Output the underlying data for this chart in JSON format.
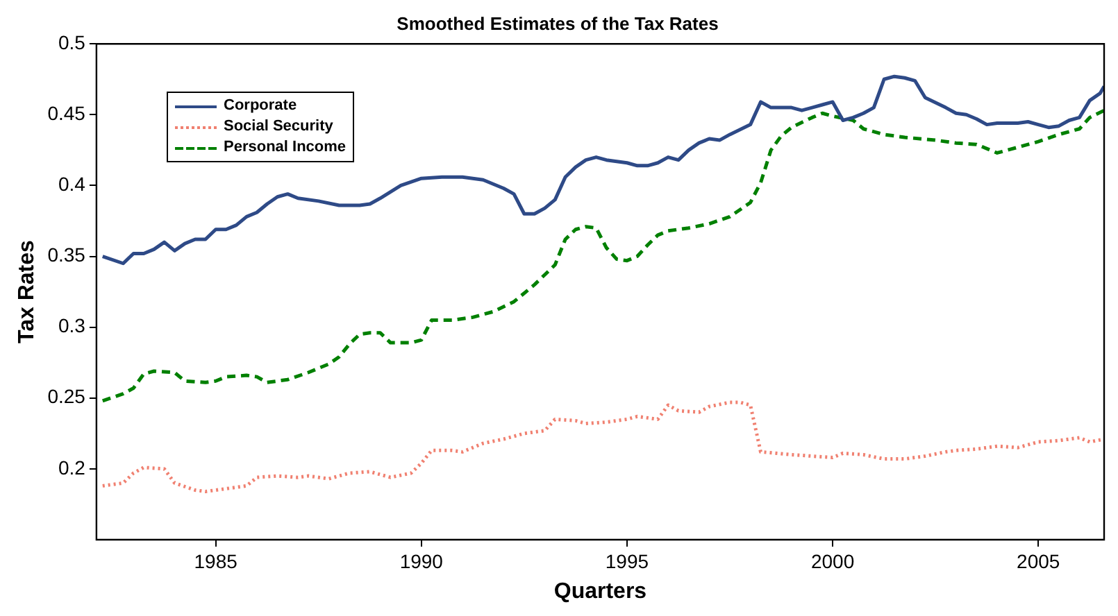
{
  "chart_data": {
    "type": "line",
    "title": "Smoothed Estimates of the Tax Rates",
    "xlabel": "Quarters",
    "ylabel": "Tax Rates",
    "xlim": [
      1982.1,
      2006.6
    ],
    "xticks": [
      1985,
      1990,
      1995,
      2000,
      2005
    ],
    "ylim": [
      0.15,
      0.5
    ],
    "yticks": [
      0.2,
      0.25,
      0.3,
      0.35,
      0.4,
      0.45,
      0.5
    ],
    "grid": false,
    "legend": "top left",
    "marker": "none",
    "series": [
      {
        "name": "Corporate",
        "color": "#2e4a87",
        "line_style": "solid",
        "x": [
          1982.25,
          1982.75,
          1983.0,
          1983.25,
          1983.5,
          1983.75,
          1984.0,
          1984.25,
          1984.5,
          1984.75,
          1985.0,
          1985.25,
          1985.5,
          1985.75,
          1986.0,
          1986.25,
          1986.5,
          1986.75,
          1987.0,
          1987.5,
          1988.0,
          1988.5,
          1988.75,
          1989.0,
          1989.5,
          1990.0,
          1990.5,
          1991.0,
          1991.5,
          1992.0,
          1992.25,
          1992.5,
          1992.75,
          1993.0,
          1993.25,
          1993.5,
          1993.75,
          1994.0,
          1994.25,
          1994.5,
          1995.0,
          1995.25,
          1995.5,
          1995.75,
          1996.0,
          1996.25,
          1996.5,
          1996.75,
          1997.0,
          1997.25,
          1997.5,
          1998.0,
          1998.25,
          1998.5,
          1999.0,
          1999.25,
          1999.5,
          1999.75,
          2000.0,
          2000.25,
          2000.5,
          2000.75,
          2001.0,
          2001.25,
          2001.5,
          2001.75,
          2002.0,
          2002.25,
          2002.75,
          2003.0,
          2003.25,
          2003.5,
          2003.75,
          2004.0,
          2004.5,
          2004.75,
          2005.0,
          2005.25,
          2005.5,
          2005.75,
          2006.0,
          2006.25,
          2006.5,
          2006.6
        ],
        "values": [
          0.35,
          0.345,
          0.352,
          0.352,
          0.355,
          0.36,
          0.354,
          0.359,
          0.362,
          0.362,
          0.369,
          0.369,
          0.372,
          0.378,
          0.381,
          0.387,
          0.392,
          0.394,
          0.391,
          0.389,
          0.386,
          0.386,
          0.387,
          0.391,
          0.4,
          0.405,
          0.406,
          0.406,
          0.404,
          0.398,
          0.394,
          0.38,
          0.38,
          0.384,
          0.39,
          0.406,
          0.413,
          0.418,
          0.42,
          0.418,
          0.416,
          0.414,
          0.414,
          0.416,
          0.42,
          0.418,
          0.425,
          0.43,
          0.433,
          0.432,
          0.436,
          0.443,
          0.459,
          0.455,
          0.455,
          0.453,
          0.455,
          0.457,
          0.459,
          0.446,
          0.448,
          0.451,
          0.455,
          0.475,
          0.477,
          0.476,
          0.474,
          0.462,
          0.455,
          0.451,
          0.45,
          0.447,
          0.443,
          0.444,
          0.444,
          0.445,
          0.443,
          0.441,
          0.442,
          0.446,
          0.448,
          0.46,
          0.465,
          0.47
        ]
      },
      {
        "name": "Social Security",
        "color": "#f08070",
        "line_style": "dotted",
        "x": [
          1982.25,
          1982.75,
          1983.0,
          1983.25,
          1983.75,
          1984.0,
          1984.5,
          1984.75,
          1985.25,
          1985.75,
          1986.0,
          1986.5,
          1987.0,
          1987.25,
          1987.75,
          1988.25,
          1988.75,
          1989.25,
          1989.75,
          1990.0,
          1990.25,
          1990.75,
          1991.0,
          1991.5,
          1992.0,
          1992.5,
          1993.0,
          1993.25,
          1993.75,
          1994.0,
          1994.5,
          1995.0,
          1995.25,
          1995.75,
          1996.0,
          1996.25,
          1996.75,
          1997.0,
          1997.5,
          1997.75,
          1998.0,
          1998.25,
          1999.0,
          1999.5,
          2000.0,
          2000.25,
          2000.75,
          2001.25,
          2001.75,
          2002.25,
          2002.75,
          2003.0,
          2003.5,
          2004.0,
          2004.5,
          2005.0,
          2005.5,
          2006.0,
          2006.25,
          2006.6
        ],
        "values": [
          0.188,
          0.19,
          0.197,
          0.201,
          0.2,
          0.19,
          0.185,
          0.184,
          0.186,
          0.188,
          0.194,
          0.195,
          0.194,
          0.195,
          0.193,
          0.197,
          0.198,
          0.194,
          0.197,
          0.204,
          0.213,
          0.213,
          0.212,
          0.218,
          0.221,
          0.225,
          0.227,
          0.235,
          0.234,
          0.232,
          0.233,
          0.235,
          0.237,
          0.235,
          0.245,
          0.241,
          0.24,
          0.244,
          0.247,
          0.247,
          0.245,
          0.212,
          0.21,
          0.209,
          0.208,
          0.211,
          0.21,
          0.207,
          0.207,
          0.209,
          0.212,
          0.213,
          0.214,
          0.216,
          0.215,
          0.219,
          0.22,
          0.222,
          0.219,
          0.221
        ]
      },
      {
        "name": "Personal Income",
        "color": "#008000",
        "line_style": "dashed",
        "x": [
          1982.25,
          1982.75,
          1983.0,
          1983.25,
          1983.5,
          1984.0,
          1984.25,
          1984.75,
          1985.0,
          1985.25,
          1985.75,
          1986.0,
          1986.25,
          1986.75,
          1987.25,
          1987.75,
          1988.0,
          1988.25,
          1988.5,
          1988.75,
          1989.0,
          1989.25,
          1989.75,
          1990.0,
          1990.25,
          1990.75,
          1991.25,
          1991.75,
          1992.25,
          1992.75,
          1993.25,
          1993.5,
          1993.75,
          1994.0,
          1994.25,
          1994.5,
          1994.75,
          1995.0,
          1995.25,
          1995.5,
          1995.75,
          1996.0,
          1996.5,
          1997.0,
          1997.5,
          1998.0,
          1998.25,
          1998.5,
          1998.75,
          1999.0,
          1999.5,
          1999.75,
          2000.0,
          2000.5,
          2000.75,
          2001.25,
          2001.75,
          2002.5,
          2003.0,
          2003.5,
          2004.0,
          2004.5,
          2005.0,
          2005.5,
          2006.0,
          2006.25,
          2006.6
        ],
        "values": [
          0.248,
          0.253,
          0.257,
          0.267,
          0.269,
          0.268,
          0.262,
          0.261,
          0.262,
          0.265,
          0.266,
          0.265,
          0.261,
          0.263,
          0.268,
          0.274,
          0.279,
          0.288,
          0.295,
          0.296,
          0.296,
          0.289,
          0.289,
          0.291,
          0.305,
          0.305,
          0.307,
          0.311,
          0.318,
          0.33,
          0.344,
          0.362,
          0.369,
          0.371,
          0.37,
          0.356,
          0.348,
          0.347,
          0.35,
          0.358,
          0.365,
          0.368,
          0.37,
          0.373,
          0.378,
          0.388,
          0.402,
          0.425,
          0.435,
          0.441,
          0.448,
          0.451,
          0.449,
          0.446,
          0.44,
          0.436,
          0.434,
          0.432,
          0.43,
          0.429,
          0.423,
          0.427,
          0.431,
          0.436,
          0.44,
          0.448,
          0.453
        ]
      }
    ]
  }
}
